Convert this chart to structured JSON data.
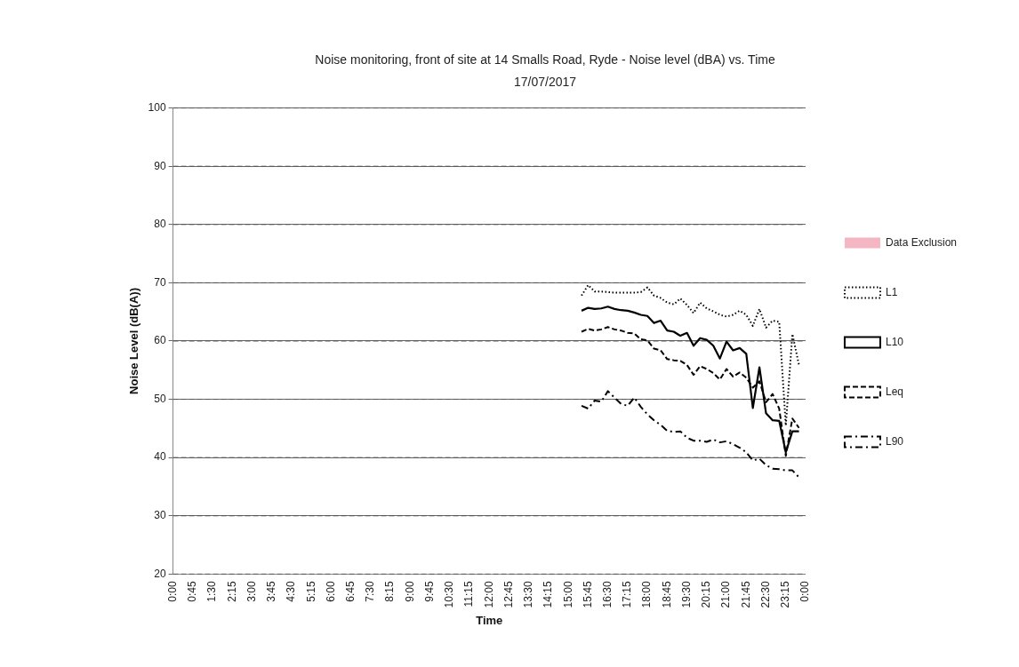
{
  "chart_data": {
    "type": "line",
    "title": "Noise monitoring, front of site at 14 Smalls Road, Ryde - Noise level (dBA) vs. Time",
    "subtitle": "17/07/2017",
    "xlabel": "Time",
    "ylabel": "Noise Level (dB(A))",
    "x": [
      15.5,
      15.75,
      16,
      16.25,
      16.5,
      16.75,
      17,
      17.25,
      17.5,
      17.75,
      18,
      18.25,
      18.5,
      18.75,
      19,
      19.25,
      19.5,
      19.75,
      20,
      20.25,
      20.5,
      20.75,
      21,
      21.25,
      21.5,
      21.75,
      22,
      22.25,
      22.5,
      22.75,
      23,
      23.25,
      23.5,
      23.75
    ],
    "series": [
      {
        "name": "Data Exclusion",
        "type": "area",
        "color": "#f4b6c2",
        "values": [
          null,
          null,
          null,
          null,
          null,
          null,
          null,
          null,
          null,
          null,
          null,
          null,
          null,
          null,
          null,
          null,
          null,
          null,
          null,
          null,
          null,
          null,
          null,
          null,
          null,
          null,
          null,
          null,
          null,
          null,
          null,
          null,
          null,
          null
        ]
      },
      {
        "name": "L1",
        "color": "#000000",
        "line_style": "dotted",
        "values": [
          67.8,
          69.6,
          68.5,
          68.5,
          68.4,
          68.3,
          68.3,
          68.3,
          68.3,
          68.4,
          69.2,
          67.8,
          67.4,
          66.6,
          66.3,
          67.3,
          66.2,
          64.8,
          66.6,
          65.6,
          65.1,
          64.5,
          64.2,
          64.5,
          65.2,
          64.5,
          62.6,
          65.5,
          62.3,
          63.5,
          63.3,
          45.5,
          61.2,
          55.9
        ]
      },
      {
        "name": "L10",
        "color": "#000000",
        "line_style": "solid",
        "values": [
          65.2,
          65.7,
          65.5,
          65.6,
          65.9,
          65.5,
          65.3,
          65.2,
          64.9,
          64.5,
          64.3,
          63.1,
          63.5,
          61.8,
          61.6,
          60.9,
          61.4,
          59.2,
          60.5,
          60.2,
          59.2,
          57.0,
          59.9,
          58.4,
          58.8,
          57.8,
          48.5,
          55.5,
          47.6,
          46.4,
          46.3,
          40.9,
          44.5,
          44.5
        ]
      },
      {
        "name": "Leq",
        "color": "#000000",
        "line_style": "dashed",
        "values": [
          61.6,
          62.1,
          61.8,
          62.0,
          62.4,
          62.0,
          61.8,
          61.4,
          61.3,
          60.3,
          60.1,
          58.7,
          58.4,
          56.9,
          56.7,
          56.6,
          55.9,
          54.2,
          55.7,
          55.2,
          54.5,
          53.4,
          55.2,
          53.9,
          54.6,
          53.7,
          52.0,
          53.1,
          49.5,
          50.9,
          48.4,
          40.3,
          46.7,
          45.1
        ]
      },
      {
        "name": "L90",
        "color": "#000000",
        "line_style": "dashdot",
        "values": [
          48.9,
          48.4,
          49.8,
          49.6,
          51.4,
          50.3,
          49.2,
          48.9,
          50.3,
          48.7,
          47.4,
          46.4,
          45.6,
          44.6,
          44.4,
          44.5,
          43.4,
          42.9,
          42.9,
          42.7,
          43.1,
          42.6,
          42.8,
          42.3,
          41.7,
          40.9,
          39.5,
          39.8,
          38.7,
          38.1,
          38.0,
          37.8,
          37.8,
          36.6
        ]
      }
    ],
    "xlim": [
      0,
      24
    ],
    "xticks": [
      {
        "value": 0,
        "label": "0:00"
      },
      {
        "value": 0.75,
        "label": "0:45"
      },
      {
        "value": 1.5,
        "label": "1:30"
      },
      {
        "value": 2.25,
        "label": "2:15"
      },
      {
        "value": 3,
        "label": "3:00"
      },
      {
        "value": 3.75,
        "label": "3:45"
      },
      {
        "value": 4.5,
        "label": "4:30"
      },
      {
        "value": 5.25,
        "label": "5:15"
      },
      {
        "value": 6,
        "label": "6:00"
      },
      {
        "value": 6.75,
        "label": "6:45"
      },
      {
        "value": 7.5,
        "label": "7:30"
      },
      {
        "value": 8.25,
        "label": "8:15"
      },
      {
        "value": 9,
        "label": "9:00"
      },
      {
        "value": 9.75,
        "label": "9:45"
      },
      {
        "value": 10.5,
        "label": "10:30"
      },
      {
        "value": 11.25,
        "label": "11:15"
      },
      {
        "value": 12,
        "label": "12:00"
      },
      {
        "value": 12.75,
        "label": "12:45"
      },
      {
        "value": 13.5,
        "label": "13:30"
      },
      {
        "value": 14.25,
        "label": "14:15"
      },
      {
        "value": 15,
        "label": "15:00"
      },
      {
        "value": 15.75,
        "label": "15:45"
      },
      {
        "value": 16.5,
        "label": "16:30"
      },
      {
        "value": 17.25,
        "label": "17:15"
      },
      {
        "value": 18,
        "label": "18:00"
      },
      {
        "value": 18.75,
        "label": "18:45"
      },
      {
        "value": 19.5,
        "label": "19:30"
      },
      {
        "value": 20.25,
        "label": "20:15"
      },
      {
        "value": 21,
        "label": "21:00"
      },
      {
        "value": 21.75,
        "label": "21:45"
      },
      {
        "value": 22.5,
        "label": "22:30"
      },
      {
        "value": 23.25,
        "label": "23:15"
      },
      {
        "value": 24,
        "label": "0:00"
      }
    ],
    "ylim": [
      20,
      100
    ],
    "yticks": [
      20,
      30,
      40,
      50,
      60,
      70,
      80,
      90,
      100
    ],
    "grid": "y",
    "legend": "right",
    "marker": "none"
  }
}
